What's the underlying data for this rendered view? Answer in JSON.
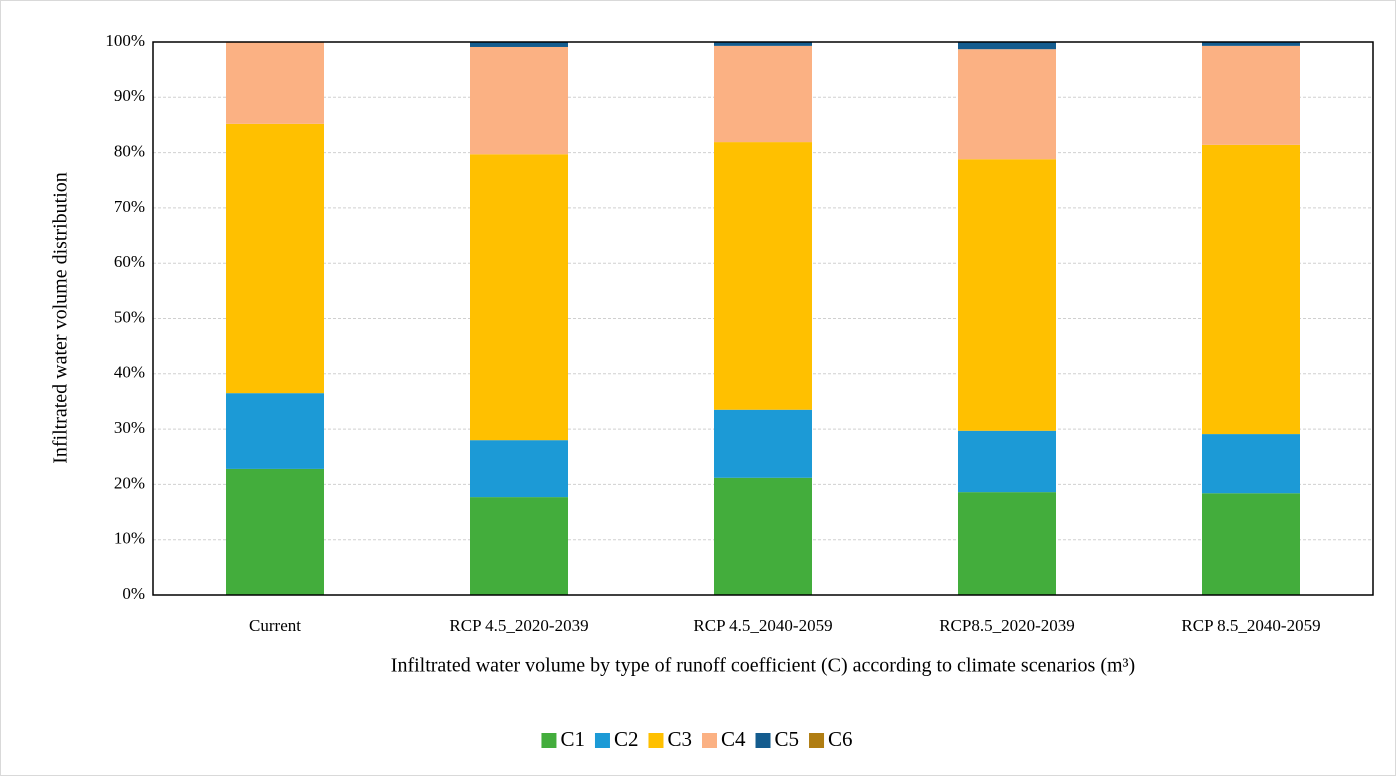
{
  "chart_data": {
    "type": "stacked-bar",
    "y_label": "Infiltrated water volume distribution",
    "x_label": "Infiltrated water volume by type of runoff coefficient (C) according to climate scenarios (m³)",
    "categories": [
      "Current",
      "RCP 4.5_2020-2039",
      "RCP 4.5_2040-2059",
      "RCP8.5_2020-2039",
      "RCP 8.5_2040-2059"
    ],
    "series": [
      {
        "name": "C1",
        "color": "#43ad3c",
        "values": [
          22.8,
          17.7,
          21.2,
          18.6,
          18.4
        ]
      },
      {
        "name": "C2",
        "color": "#1c9ad6",
        "values": [
          13.7,
          10.3,
          12.3,
          11.1,
          10.7
        ]
      },
      {
        "name": "C3",
        "color": "#ffc000",
        "values": [
          48.7,
          51.7,
          48.4,
          49.1,
          52.3
        ]
      },
      {
        "name": "C4",
        "color": "#fbb183",
        "values": [
          14.8,
          19.4,
          17.4,
          19.9,
          17.9
        ]
      },
      {
        "name": "C5",
        "color": "#145c8e",
        "values": [
          0,
          0.9,
          0.7,
          1.3,
          0.7
        ]
      },
      {
        "name": "C6",
        "color": "#b07d12",
        "values": [
          0,
          0,
          0,
          0,
          0
        ]
      }
    ],
    "ylim": [
      0,
      100
    ],
    "yticks": [
      {
        "value": 0,
        "label": "0%"
      },
      {
        "value": 10,
        "label": "10%"
      },
      {
        "value": 20,
        "label": "20%"
      },
      {
        "value": 30,
        "label": "30%"
      },
      {
        "value": 40,
        "label": "40%"
      },
      {
        "value": 50,
        "label": "50%"
      },
      {
        "value": 60,
        "label": "60%"
      },
      {
        "value": 70,
        "label": "70%"
      },
      {
        "value": 80,
        "label": "80%"
      },
      {
        "value": 90,
        "label": "90%"
      },
      {
        "value": 100,
        "label": "100%"
      }
    ],
    "grid": true,
    "legend": "bottom"
  }
}
